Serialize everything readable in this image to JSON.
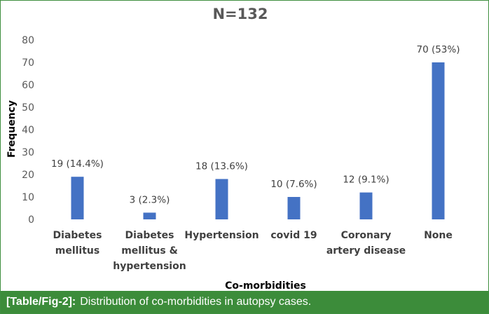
{
  "chart_data": {
    "type": "bar",
    "title": "N=132",
    "xlabel": "Co-morbidities",
    "ylabel": "Frequency",
    "ylim": [
      0,
      80
    ],
    "yticks": [
      0,
      10,
      20,
      30,
      40,
      50,
      60,
      70,
      80
    ],
    "grid": false,
    "bar_color": "#4472c4",
    "categories": [
      [
        "Diabetes",
        "mellitus"
      ],
      [
        "Diabetes",
        "mellitus &",
        "hypertension"
      ],
      [
        "Hypertension"
      ],
      [
        "covid 19"
      ],
      [
        "Coronary",
        "artery disease"
      ],
      [
        "None"
      ]
    ],
    "values": [
      19,
      3,
      18,
      10,
      12,
      70
    ],
    "data_labels": [
      "19 (14.4%)",
      "3 (2.3%)",
      "18 (13.6%)",
      "10 (7.6%)",
      "12 (9.1%)",
      "70 (53%)"
    ]
  },
  "caption": {
    "label": "[Table/Fig-2]:",
    "text": "Distribution of co-morbidities in autopsy cases."
  },
  "colors": {
    "caption_background": "#3c8c3a",
    "border": "#3f8f3f"
  }
}
